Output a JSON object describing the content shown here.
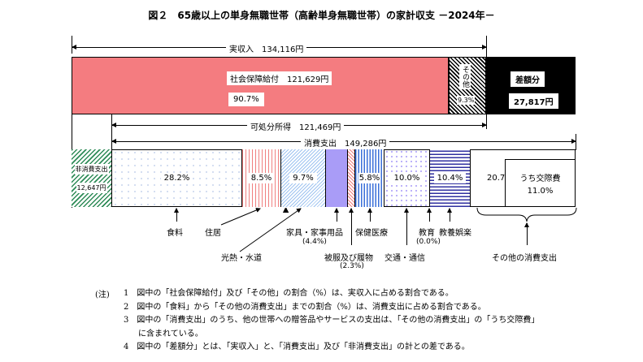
{
  "title": "図２　65歳以上の単身無職世帯（高齢単身無職世帯）の家計収支 －2024年－",
  "income": {
    "label": "実収入",
    "amount": "134,116円",
    "social_security": {
      "label": "社会保障給付",
      "amount": "121,629円",
      "pct": "90.7%"
    },
    "other": {
      "label": "その他",
      "pct": "9.3%"
    },
    "deficit": {
      "label": "差額分",
      "amount": "27,817円"
    }
  },
  "disposable": {
    "label": "可処分所得",
    "amount": "121,469円"
  },
  "consumption": {
    "label": "消費支出",
    "amount": "149,286円"
  },
  "non_consumption": {
    "label": "非消費支出",
    "amount": "12,647円"
  },
  "segments": [
    {
      "label": "食料",
      "pct": "28.2%"
    },
    {
      "label": "住居",
      "pct": "8.5%"
    },
    {
      "label": "光熱・水道",
      "pct": "9.7%"
    },
    {
      "label": "家具・家事用品",
      "pct": "(4.4%)"
    },
    {
      "label": "被服及び履物",
      "pct": "(2.3%)"
    },
    {
      "label": "保健医療",
      "pct": "5.8%"
    },
    {
      "label": "交通・通信",
      "pct": "10.0%"
    },
    {
      "label": "教育",
      "pct": "(0.0%)"
    },
    {
      "label": "教養娯楽",
      "pct": "10.4%"
    },
    {
      "label": "その他の消費支出",
      "pct": "20.7%"
    }
  ],
  "entertainment": {
    "label": "うち交際費",
    "pct": "11.0%"
  },
  "notes": {
    "head": "(注)",
    "items": [
      {
        "n": "1",
        "text": "図中の「社会保障給付」及び「その他」の割合（%）は、実収入に占める割合である。"
      },
      {
        "n": "2",
        "text": "図中の「食料」から「その他の消費支出」までの割合（%）は、消費支出に占める割合である。"
      },
      {
        "n": "3",
        "text": "図中の「消費支出」のうち、他の世帯への贈答品やサービスの支出は、「その他の消費支出」の「うち交際費」",
        "text2": "に含まれている。"
      },
      {
        "n": "4",
        "text": "図中の「差額分」とは、「実収入」と、「消費支出」及び「非消費支出」の計との差である。"
      }
    ]
  },
  "colors": {
    "social_security": "#f47c80",
    "deficit": "#000000",
    "furniture": "#a99cf7"
  }
}
